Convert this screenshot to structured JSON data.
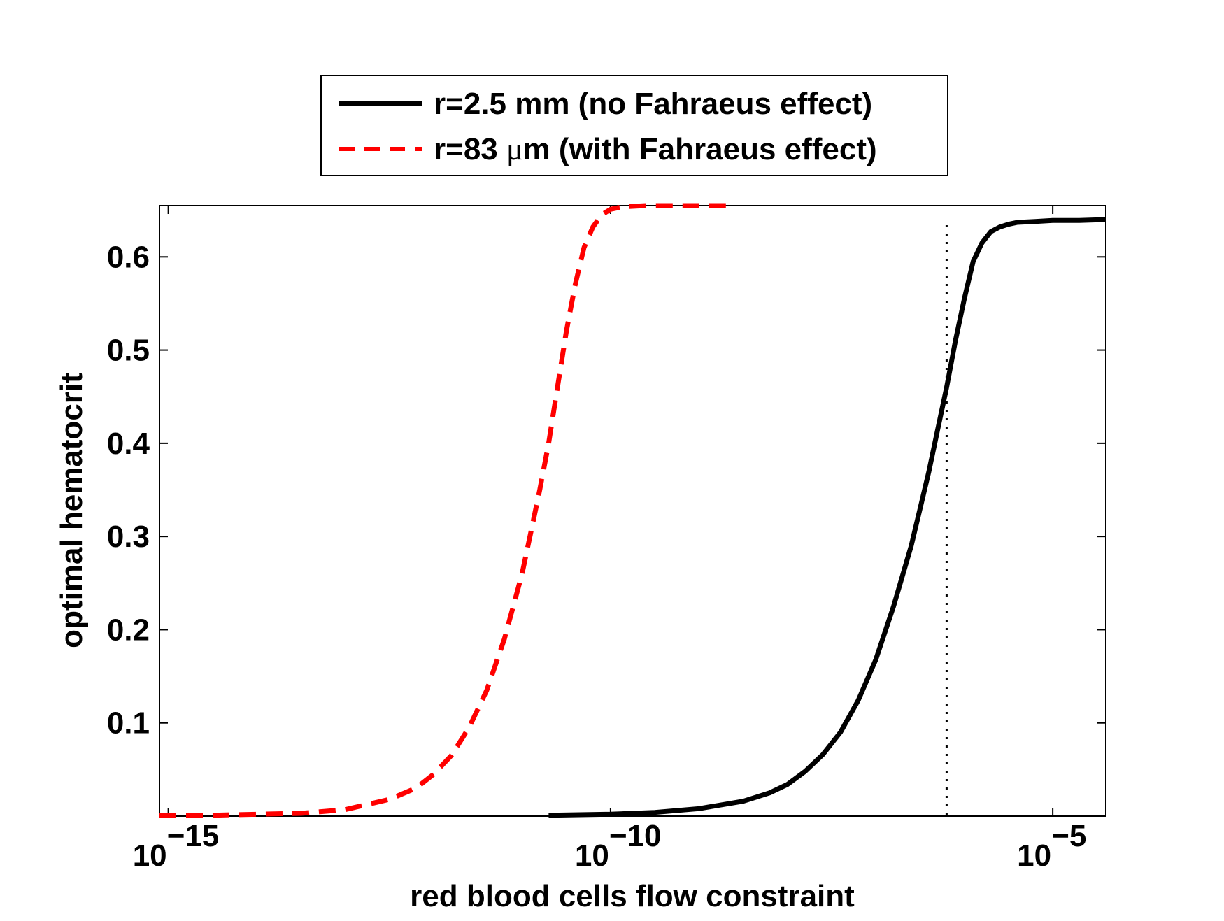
{
  "chart_data": {
    "type": "line",
    "title": "",
    "xlabel": "red blood cells flow constraint",
    "ylabel": "optimal hematocrit",
    "xscale": "log",
    "xlim_log10": [
      -15.1,
      -4.4
    ],
    "ylim": [
      0,
      0.655
    ],
    "x_ticks": [
      {
        "base": "10",
        "exp": "−15",
        "log10": -15
      },
      {
        "base": "10",
        "exp": "−10",
        "log10": -10
      },
      {
        "base": "10",
        "exp": "−5",
        "log10": -5
      }
    ],
    "y_ticks": [
      "0.1",
      "0.2",
      "0.3",
      "0.4",
      "0.5",
      "0.6"
    ],
    "y_tick_values": [
      0.1,
      0.2,
      0.3,
      0.4,
      0.5,
      0.6
    ],
    "grid": false,
    "legend_position": "above plot, centered",
    "series": [
      {
        "name": "r=2.5 mm (no Fahraeus effect)",
        "style": "solid",
        "color": "#000000",
        "log10_x": [
          -10.7,
          -10.0,
          -9.5,
          -9.0,
          -8.5,
          -8.2,
          -8.0,
          -7.8,
          -7.6,
          -7.4,
          -7.2,
          -7.0,
          -6.8,
          -6.6,
          -6.5,
          -6.4,
          -6.3,
          -6.2,
          -6.1,
          -6.0,
          -5.9,
          -5.8,
          -5.7,
          -5.6,
          -5.5,
          -5.4,
          -5.2,
          -5.0,
          -4.7,
          -4.4
        ],
        "y": [
          0.001,
          0.002,
          0.004,
          0.008,
          0.016,
          0.025,
          0.034,
          0.048,
          0.066,
          0.09,
          0.124,
          0.168,
          0.225,
          0.29,
          0.33,
          0.37,
          0.415,
          0.46,
          0.51,
          0.555,
          0.595,
          0.615,
          0.627,
          0.632,
          0.635,
          0.637,
          0.638,
          0.639,
          0.639,
          0.64
        ]
      },
      {
        "name": "r=83 μm (with Fahraeus effect)",
        "style": "dashed",
        "color": "#ff0000",
        "log10_x": [
          -15.1,
          -14.5,
          -14.0,
          -13.5,
          -13.0,
          -12.5,
          -12.2,
          -12.0,
          -11.8,
          -11.6,
          -11.4,
          -11.2,
          -11.0,
          -10.9,
          -10.8,
          -10.7,
          -10.6,
          -10.5,
          -10.4,
          -10.3,
          -10.2,
          -10.1,
          -10.0,
          -9.9,
          -9.8,
          -9.6,
          -9.4,
          -9.0,
          -8.6
        ],
        "y": [
          0.001,
          0.001,
          0.002,
          0.003,
          0.007,
          0.018,
          0.03,
          0.045,
          0.065,
          0.095,
          0.135,
          0.19,
          0.26,
          0.305,
          0.35,
          0.4,
          0.46,
          0.52,
          0.57,
          0.61,
          0.632,
          0.645,
          0.651,
          0.653,
          0.654,
          0.655,
          0.655,
          0.655,
          0.655
        ]
      }
    ],
    "reference_line": {
      "style": "dotted",
      "color": "#000000",
      "log10_x": -6.2
    }
  },
  "legend": {
    "items": [
      {
        "text": "r=2.5 mm (no Fahraeus effect)",
        "line_color": "#000000"
      },
      {
        "prefix": "r=83 ",
        "mu": "μ",
        "suffix": "m (with Fahraeus effect)",
        "line_color": "#ff0000"
      }
    ]
  }
}
